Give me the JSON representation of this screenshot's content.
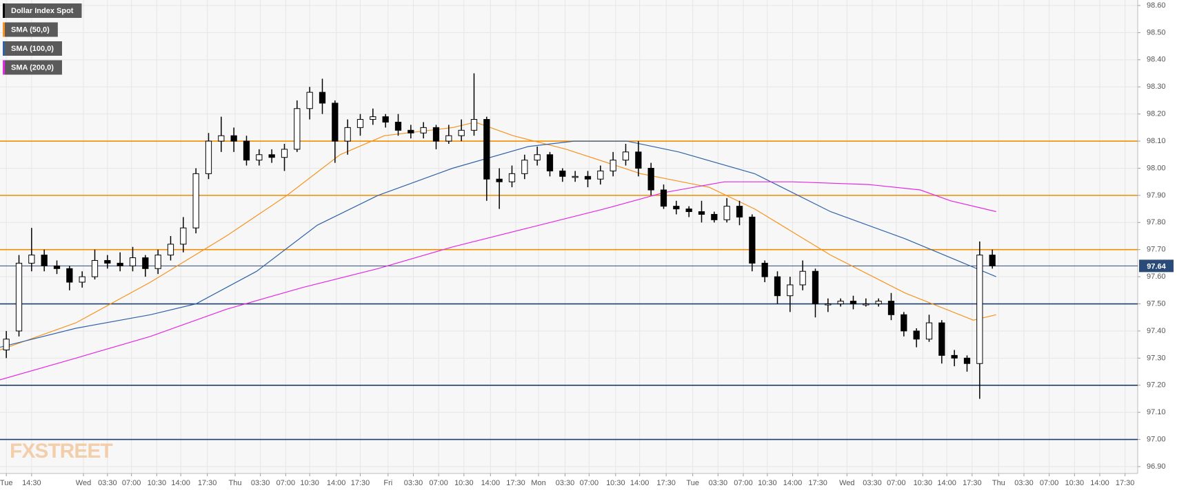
{
  "chart_data": {
    "type": "candlestick",
    "series": [
      {
        "name": "Dollar Index Spot",
        "color": "#000000",
        "open": [
          97.33,
          97.4,
          97.65,
          97.68,
          97.64,
          97.63,
          97.58,
          97.6,
          97.66,
          97.65,
          97.64,
          97.67,
          97.63,
          97.68,
          97.72,
          97.78,
          97.98,
          98.1,
          98.12,
          98.1,
          98.03,
          98.05,
          98.04,
          98.07,
          98.22,
          98.28,
          98.24,
          98.1,
          98.15,
          98.18,
          98.19,
          98.17,
          98.14,
          98.13,
          98.15,
          98.1,
          98.12,
          98.14,
          98.18,
          97.96,
          97.95,
          97.98,
          98.03,
          98.05,
          97.99,
          97.97,
          97.97,
          97.96,
          97.99,
          98.03,
          98.06,
          98.0,
          97.92,
          97.86,
          97.85,
          97.84,
          97.83,
          97.81,
          97.86,
          97.82,
          97.65,
          97.6,
          97.53,
          97.57,
          97.62,
          97.5,
          97.5,
          97.51,
          97.5,
          97.5,
          97.51,
          97.46,
          97.4,
          97.37,
          97.43,
          97.31,
          97.3,
          97.28,
          97.68
        ],
        "high": [
          97.4,
          97.68,
          97.78,
          97.7,
          97.66,
          97.64,
          97.62,
          97.7,
          97.68,
          97.69,
          97.71,
          97.68,
          97.7,
          97.75,
          97.82,
          98.0,
          98.13,
          98.19,
          98.15,
          98.12,
          98.07,
          98.07,
          98.09,
          98.25,
          98.3,
          98.33,
          98.25,
          98.18,
          98.2,
          98.22,
          98.2,
          98.2,
          98.16,
          98.17,
          98.16,
          98.16,
          98.18,
          98.35,
          98.19,
          98.0,
          98.01,
          98.05,
          98.08,
          98.06,
          98.0,
          97.99,
          97.99,
          98.01,
          98.06,
          98.09,
          98.1,
          98.02,
          97.94,
          97.88,
          97.86,
          97.88,
          97.84,
          97.89,
          97.88,
          97.83,
          97.66,
          97.62,
          97.6,
          97.66,
          97.63,
          97.52,
          97.52,
          97.53,
          97.52,
          97.52,
          97.54,
          97.47,
          97.41,
          97.46,
          97.44,
          97.33,
          97.31,
          97.73,
          97.7
        ],
        "low": [
          97.3,
          97.38,
          97.62,
          97.62,
          97.61,
          97.55,
          97.56,
          97.59,
          97.63,
          97.62,
          97.62,
          97.6,
          97.61,
          97.66,
          97.69,
          97.76,
          97.96,
          98.06,
          98.06,
          98.01,
          98.01,
          98.02,
          97.99,
          98.06,
          98.18,
          98.2,
          98.02,
          98.05,
          98.12,
          98.16,
          98.15,
          98.12,
          98.11,
          98.11,
          98.07,
          98.09,
          98.1,
          98.12,
          97.88,
          97.85,
          97.93,
          97.96,
          98.01,
          97.97,
          97.95,
          97.95,
          97.93,
          97.94,
          97.97,
          98.01,
          97.97,
          97.9,
          97.85,
          97.83,
          97.82,
          97.8,
          97.8,
          97.8,
          97.79,
          97.62,
          97.58,
          97.5,
          97.47,
          97.55,
          97.45,
          97.47,
          97.49,
          97.48,
          97.49,
          97.49,
          97.44,
          97.38,
          97.34,
          97.36,
          97.28,
          97.27,
          97.25,
          97.15,
          97.63
        ],
        "close": [
          97.37,
          97.65,
          97.68,
          97.64,
          97.63,
          97.58,
          97.6,
          97.66,
          97.65,
          97.64,
          97.67,
          97.63,
          97.68,
          97.72,
          97.78,
          97.98,
          98.1,
          98.12,
          98.1,
          98.03,
          98.05,
          98.04,
          98.07,
          98.22,
          98.28,
          98.24,
          98.1,
          98.15,
          98.18,
          98.19,
          98.17,
          98.14,
          98.13,
          98.15,
          98.1,
          98.12,
          98.14,
          98.18,
          97.96,
          97.95,
          97.98,
          98.03,
          98.05,
          97.99,
          97.97,
          97.97,
          97.96,
          97.99,
          98.03,
          98.06,
          98.0,
          97.92,
          97.86,
          97.85,
          97.84,
          97.83,
          97.81,
          97.86,
          97.82,
          97.65,
          97.6,
          97.53,
          97.57,
          97.62,
          97.5,
          97.5,
          97.51,
          97.5,
          97.5,
          97.51,
          97.46,
          97.4,
          97.37,
          97.43,
          97.31,
          97.3,
          97.28,
          97.68,
          97.64
        ]
      }
    ],
    "sma": [
      {
        "name": "SMA (50,0)",
        "color": "#f7931e",
        "x": [
          0,
          6,
          11.9,
          17.9,
          22.7,
          26.9,
          30.4,
          35.8,
          37.6,
          40.6,
          44.8,
          50.7,
          56.1,
          59.7,
          65.7,
          71.6,
          77,
          78.8
        ],
        "values": [
          97.33,
          97.43,
          97.58,
          97.75,
          97.9,
          98.05,
          98.12,
          98.15,
          98.17,
          98.12,
          98.07,
          97.98,
          97.93,
          97.85,
          97.68,
          97.54,
          97.44,
          97.46
        ]
      },
      {
        "name": "SMA (100,0)",
        "color": "#2f62a8",
        "x": [
          0,
          6,
          11.9,
          15.5,
          20.3,
          25.1,
          29.9,
          35.8,
          41.8,
          45.4,
          49.6,
          53.7,
          59.7,
          65.7,
          71.6,
          78.8
        ],
        "values": [
          97.34,
          97.41,
          97.46,
          97.5,
          97.62,
          97.79,
          97.9,
          98,
          98.08,
          98.1,
          98.1,
          98.06,
          97.98,
          97.84,
          97.74,
          97.6
        ]
      },
      {
        "name": "SMA (200,0)",
        "color": "#e329e3",
        "x": [
          0,
          6,
          11.9,
          17.9,
          23.9,
          29.9,
          35.8,
          41.8,
          47.8,
          52.5,
          57.3,
          62.7,
          68.7,
          72.8,
          75.2,
          78.8
        ],
        "values": [
          97.22,
          97.3,
          97.38,
          97.48,
          97.56,
          97.63,
          97.71,
          97.78,
          97.85,
          97.91,
          97.95,
          97.95,
          97.94,
          97.92,
          97.88,
          97.84
        ]
      }
    ],
    "levels": [
      {
        "value": 98.1,
        "color": "#f08c00"
      },
      {
        "value": 97.9,
        "color": "#f08c00"
      },
      {
        "value": 97.7,
        "color": "#f08c00"
      },
      {
        "value": 97.5,
        "color": "#1c3e6e"
      },
      {
        "value": 97.2,
        "color": "#1c3e6e"
      },
      {
        "value": 97.0,
        "color": "#1c3e6e"
      }
    ],
    "last_price": 97.64,
    "last_price_color": "#2a4a78",
    "watermark": "FXSTREET",
    "ylim": [
      96.9,
      98.6
    ],
    "yticks": [
      {
        "value": 96.9,
        "label": "96.90"
      },
      {
        "value": 97.0,
        "label": "97.00"
      },
      {
        "value": 97.1,
        "label": "97.10"
      },
      {
        "value": 97.2,
        "label": "97.20"
      },
      {
        "value": 97.3,
        "label": "97.30"
      },
      {
        "value": 97.4,
        "label": "97.40"
      },
      {
        "value": 97.5,
        "label": "97.50"
      },
      {
        "value": 97.6,
        "label": "97.60"
      },
      {
        "value": 97.7,
        "label": "97.70"
      },
      {
        "value": 97.8,
        "label": "97.80"
      },
      {
        "value": 97.9,
        "label": "97.90"
      },
      {
        "value": 98.0,
        "label": "98.00"
      },
      {
        "value": 98.1,
        "label": "98.10"
      },
      {
        "value": 98.2,
        "label": "98.20"
      },
      {
        "value": 98.3,
        "label": "98.30"
      },
      {
        "value": 98.4,
        "label": "98.40"
      },
      {
        "value": 98.5,
        "label": "98.50"
      },
      {
        "value": 98.6,
        "label": "98.60"
      }
    ],
    "xlim": [
      0,
      90
    ],
    "xticks": [
      {
        "value": 0.5,
        "label": "Tue"
      },
      {
        "value": 2.5,
        "label": "14:30"
      },
      {
        "value": 6.6,
        "label": "Wed"
      },
      {
        "value": 8.5,
        "label": "03:30"
      },
      {
        "value": 10.4,
        "label": "07:00"
      },
      {
        "value": 12.4,
        "label": "10:30"
      },
      {
        "value": 14.3,
        "label": "14:00"
      },
      {
        "value": 16.4,
        "label": "17:30"
      },
      {
        "value": 18.6,
        "label": "Thu"
      },
      {
        "value": 20.6,
        "label": "03:30"
      },
      {
        "value": 22.6,
        "label": "07:00"
      },
      {
        "value": 24.5,
        "label": "10:30"
      },
      {
        "value": 26.6,
        "label": "14:00"
      },
      {
        "value": 28.5,
        "label": "17:30"
      },
      {
        "value": 30.7,
        "label": "Fri"
      },
      {
        "value": 32.7,
        "label": "03:30"
      },
      {
        "value": 34.7,
        "label": "07:00"
      },
      {
        "value": 36.7,
        "label": "10:30"
      },
      {
        "value": 38.8,
        "label": "14:00"
      },
      {
        "value": 40.8,
        "label": "17:30"
      },
      {
        "value": 42.6,
        "label": "Mon"
      },
      {
        "value": 44.7,
        "label": "03:30"
      },
      {
        "value": 46.6,
        "label": "07:00"
      },
      {
        "value": 48.7,
        "label": "10:30"
      },
      {
        "value": 50.6,
        "label": "14:00"
      },
      {
        "value": 52.7,
        "label": "17:30"
      },
      {
        "value": 54.8,
        "label": "Tue"
      },
      {
        "value": 56.8,
        "label": "03:30"
      },
      {
        "value": 58.8,
        "label": "07:00"
      },
      {
        "value": 60.7,
        "label": "10:30"
      },
      {
        "value": 62.7,
        "label": "14:00"
      },
      {
        "value": 64.7,
        "label": "17:30"
      },
      {
        "value": 67.0,
        "label": "Wed"
      },
      {
        "value": 69.0,
        "label": "03:30"
      },
      {
        "value": 70.9,
        "label": "07:00"
      },
      {
        "value": 73.0,
        "label": "10:30"
      },
      {
        "value": 74.9,
        "label": "14:00"
      },
      {
        "value": 76.9,
        "label": "17:30"
      },
      {
        "value": 79.0,
        "label": "Thu"
      },
      {
        "value": 81.0,
        "label": "03:30"
      },
      {
        "value": 83.0,
        "label": "07:00"
      },
      {
        "value": 85.0,
        "label": "10:30"
      },
      {
        "value": 87.0,
        "label": "14:00"
      },
      {
        "value": 89.0,
        "label": "17:30"
      }
    ],
    "grid": true
  }
}
